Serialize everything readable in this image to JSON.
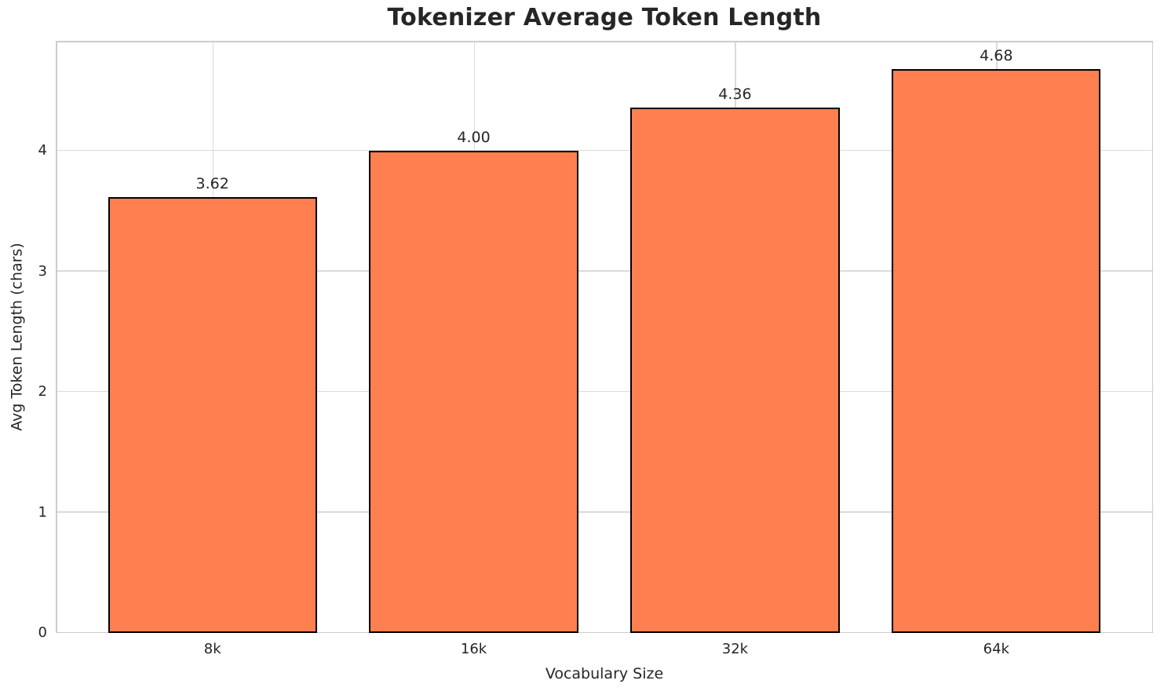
{
  "figure": {
    "background": "#ffffff"
  },
  "chart_data": {
    "type": "bar",
    "title": "Tokenizer Average Token Length",
    "xlabel": "Vocabulary Size",
    "ylabel": "Avg Token Length (chars)",
    "categories": [
      "8k",
      "16k",
      "32k",
      "64k"
    ],
    "values": [
      3.62,
      4.0,
      4.36,
      4.68
    ],
    "value_labels": [
      "3.62",
      "4.00",
      "4.36",
      "4.68"
    ],
    "yticks": [
      0,
      1,
      2,
      3,
      4
    ],
    "ytick_labels": [
      "0",
      "1",
      "2",
      "3",
      "4"
    ],
    "ylim": [
      0,
      4.914
    ],
    "grid": "both",
    "legend": "none",
    "bar_color": "#FF7F50",
    "bar_edge_color": "#000000",
    "bar_width": 0.8,
    "x_margin": 0.6,
    "grid_color": "#dadada",
    "spine_color": "#cccccc",
    "text_color": "#262626"
  }
}
